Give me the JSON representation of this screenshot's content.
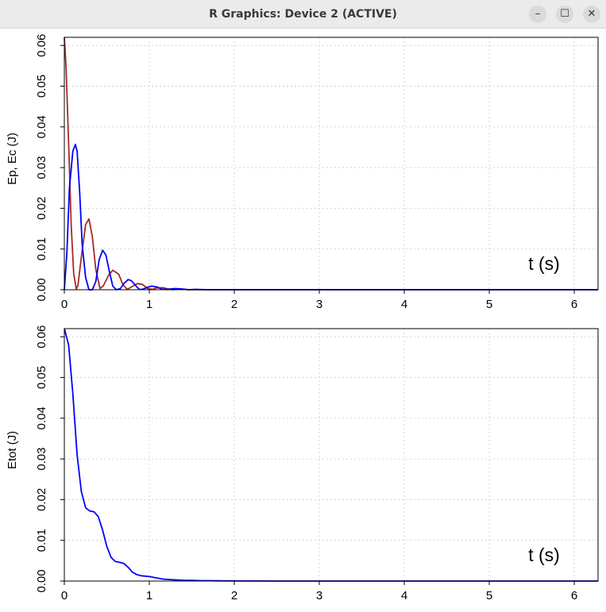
{
  "window": {
    "title": "R Graphics: Device 2 (ACTIVE)",
    "minimize_icon": "minimize-icon",
    "maximize_icon": "maximize-icon",
    "close_icon": "close-icon"
  },
  "chart_data": [
    {
      "type": "line",
      "ylabel": "Ep, Ec  (J)",
      "annotation": "t (s)",
      "xlim": [
        0,
        6.28
      ],
      "ylim": [
        0,
        0.062
      ],
      "x_ticks": [
        0,
        1,
        2,
        3,
        4,
        5,
        6
      ],
      "y_ticks": [
        "0.00",
        "0.01",
        "0.02",
        "0.03",
        "0.04",
        "0.05",
        "0.06"
      ],
      "grid": true,
      "series": [
        {
          "color": "#a52a2a",
          "x": [
            0,
            0.02,
            0.05,
            0.08,
            0.11,
            0.14,
            0.16,
            0.2,
            0.25,
            0.29,
            0.33,
            0.37,
            0.42,
            0.46,
            0.52,
            0.57,
            0.64,
            0.69,
            0.74,
            0.8,
            0.86,
            0.92,
            0.98,
            1.04,
            1.08,
            1.16,
            1.22,
            1.28,
            1.35,
            1.42,
            1.48,
            1.6,
            2.0,
            6.28
          ],
          "y": [
            0.062,
            0.055,
            0.036,
            0.016,
            0.004,
            0.0002,
            0.001,
            0.008,
            0.016,
            0.0174,
            0.013,
            0.005,
            0.0003,
            0.001,
            0.0035,
            0.0048,
            0.0038,
            0.0012,
            0.0001,
            0.0008,
            0.0015,
            0.0013,
            0.0003,
            0.0001,
            0.0004,
            0.0005,
            0.0002,
            0.0,
            0.0002,
            0.0001,
            0.0,
            0.0,
            0.0,
            0.0
          ]
        },
        {
          "color": "#0000ff",
          "x": [
            0,
            0.03,
            0.06,
            0.1,
            0.13,
            0.15,
            0.18,
            0.21,
            0.25,
            0.29,
            0.33,
            0.37,
            0.41,
            0.45,
            0.49,
            0.53,
            0.57,
            0.61,
            0.66,
            0.7,
            0.75,
            0.79,
            0.84,
            0.88,
            0.92,
            0.98,
            1.03,
            1.1,
            1.15,
            1.2,
            1.3,
            1.38,
            1.46,
            1.54,
            1.7,
            2.0,
            6.28
          ],
          "y": [
            0,
            0.009,
            0.025,
            0.034,
            0.0357,
            0.034,
            0.024,
            0.011,
            0.003,
            0.0,
            0.0,
            0.002,
            0.0074,
            0.0097,
            0.0085,
            0.0045,
            0.0009,
            0.0,
            0.0003,
            0.0015,
            0.0025,
            0.0022,
            0.001,
            0.0001,
            0.0001,
            0.0006,
            0.0009,
            0.0006,
            0.0001,
            0.0001,
            0.0003,
            0.0002,
            0.0,
            0.0001,
            0.0,
            0.0,
            0.0
          ]
        }
      ]
    },
    {
      "type": "line",
      "ylabel": "Etot (J)",
      "annotation": "t (s)",
      "xlim": [
        0,
        6.28
      ],
      "ylim": [
        0,
        0.062
      ],
      "x_ticks": [
        0,
        1,
        2,
        3,
        4,
        5,
        6
      ],
      "y_ticks": [
        "0.00",
        "0.01",
        "0.02",
        "0.03",
        "0.04",
        "0.05",
        "0.06"
      ],
      "grid": true,
      "series": [
        {
          "color": "#0000ff",
          "x": [
            0,
            0.05,
            0.1,
            0.15,
            0.2,
            0.25,
            0.3,
            0.35,
            0.4,
            0.45,
            0.5,
            0.55,
            0.6,
            0.65,
            0.7,
            0.75,
            0.8,
            0.85,
            0.9,
            0.95,
            1.0,
            1.05,
            1.1,
            1.15,
            1.2,
            1.3,
            1.4,
            1.5,
            1.6,
            1.8,
            2.0,
            2.5,
            6.28
          ],
          "y": [
            0.062,
            0.058,
            0.046,
            0.031,
            0.022,
            0.018,
            0.0172,
            0.017,
            0.0158,
            0.0125,
            0.0085,
            0.0058,
            0.0048,
            0.0046,
            0.0043,
            0.0034,
            0.0022,
            0.0016,
            0.0013,
            0.0012,
            0.0011,
            0.0009,
            0.0007,
            0.0005,
            0.0004,
            0.0003,
            0.0002,
            0.00015,
            0.0001,
            5e-05,
            2e-05,
            0.0,
            0.0
          ]
        }
      ]
    }
  ]
}
